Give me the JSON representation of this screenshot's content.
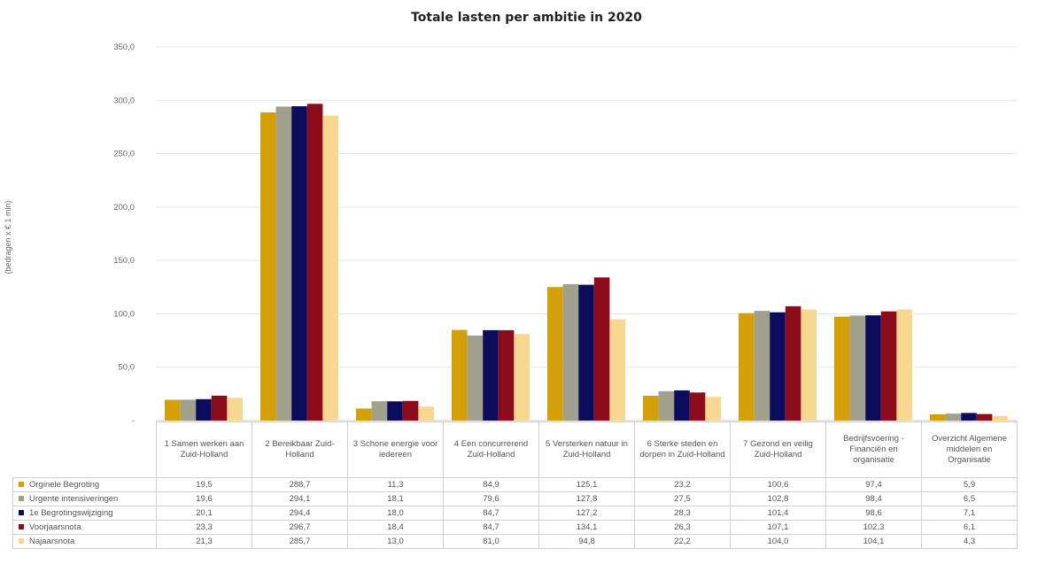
{
  "chart_data": {
    "type": "bar",
    "title": "Totale lasten per ambitie in 2020",
    "ylabel": "(bedragen x € 1 mln)",
    "xlabel": "",
    "ylim": [
      0,
      350
    ],
    "yticks": [
      0,
      50,
      100,
      150,
      200,
      250,
      300,
      350
    ],
    "ytick_labels": [
      "-",
      "50,0",
      "100,0",
      "150,0",
      "200,0",
      "250,0",
      "300,0",
      "350,0"
    ],
    "grid": true,
    "legend": "table-left",
    "categories": [
      "1 Samen werken aan Zuid-Holland",
      "2 Bereikbaar Zuid-Holland",
      "3 Schone energie voor iedereen",
      "4 Een concurrerend Zuid-Holland",
      "5 Versterken natuur in Zuid-Holland",
      "6 Sterke steden en dorpen in Zuid-Holland",
      "7 Gezond en veilig Zuid-Holland",
      "Bedrijfsvoering - Financiën en organisatie",
      "Overzicht Algemene middelen en Organisatie"
    ],
    "series": [
      {
        "name": "Orginele Begroting",
        "color": "#d4a00a",
        "values": [
          19.5,
          288.7,
          11.3,
          84.9,
          125.1,
          23.2,
          100.6,
          97.4,
          5.9
        ],
        "labels": [
          "19,5",
          "288,7",
          "11,3",
          "84,9",
          "125,1",
          "23,2",
          "100,6",
          "97,4",
          "5,9"
        ]
      },
      {
        "name": "Urgente intensiveringen",
        "color": "#a0a08c",
        "values": [
          19.6,
          294.1,
          18.1,
          79.6,
          127.8,
          27.5,
          102.8,
          98.4,
          6.5
        ],
        "labels": [
          "19,6",
          "294,1",
          "18,1",
          "79,6",
          "127,8",
          "27,5",
          "102,8",
          "98,4",
          "6,5"
        ]
      },
      {
        "name": "1e Begrotingswijziging",
        "color": "#0c0c5c",
        "values": [
          20.1,
          294.4,
          18.0,
          84.7,
          127.2,
          28.3,
          101.4,
          98.6,
          7.1
        ],
        "labels": [
          "20,1",
          "294,4",
          "18,0",
          "84,7",
          "127,2",
          "28,3",
          "101,4",
          "98,6",
          "7,1"
        ]
      },
      {
        "name": "Voorjaarsnota",
        "color": "#8c0c1c",
        "values": [
          23.3,
          296.7,
          18.4,
          84.7,
          134.1,
          26.3,
          107.1,
          102.3,
          6.1
        ],
        "labels": [
          "23,3",
          "296,7",
          "18,4",
          "84,7",
          "134,1",
          "26,3",
          "107,1",
          "102,3",
          "6,1"
        ]
      },
      {
        "name": "Najaarsnota",
        "color": "#f8d890",
        "values": [
          21.3,
          285.7,
          13.0,
          81.0,
          94.8,
          22.2,
          104.0,
          104.1,
          4.3
        ],
        "labels": [
          "21,3",
          "285,7",
          "13,0",
          "81,0",
          "94,8",
          "22,2",
          "104,0",
          "104,1",
          "4,3"
        ]
      }
    ]
  }
}
